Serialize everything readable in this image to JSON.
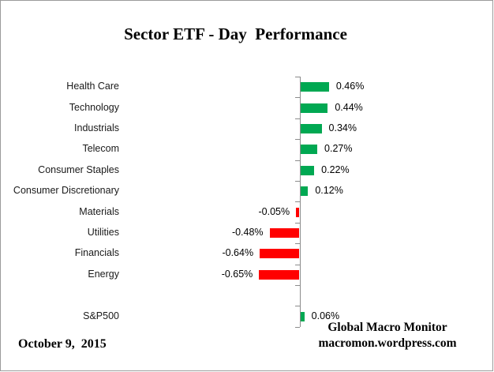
{
  "title": "Sector ETF - Day  Performance",
  "footer": {
    "date": "October 9,  2015",
    "credit_line1": "Global Macro Monitor",
    "credit_line2": "macromon.wordpress.com"
  },
  "colors": {
    "positive": "#00a852",
    "negative": "#ff0000",
    "axis": "#8c8c8c",
    "border": "#9b9b9b",
    "text": "#000000"
  },
  "chart_data": {
    "type": "bar",
    "orientation": "horizontal",
    "title": "Sector ETF - Day  Performance",
    "unit": "%",
    "value_labels_shown": true,
    "grid": false,
    "legend": false,
    "xlim": [
      -0.8,
      0.6
    ],
    "rows": [
      {
        "category": "Health Care",
        "value": 0.46,
        "label": "0.46%"
      },
      {
        "category": "Technology",
        "value": 0.44,
        "label": "0.44%"
      },
      {
        "category": "Industrials",
        "value": 0.34,
        "label": "0.34%"
      },
      {
        "category": "Telecom",
        "value": 0.27,
        "label": "0.27%"
      },
      {
        "category": "Consumer Staples",
        "value": 0.22,
        "label": "0.22%"
      },
      {
        "category": "Consumer Discretionary",
        "value": 0.12,
        "label": "0.12%"
      },
      {
        "category": "Materials",
        "value": -0.05,
        "label": "-0.05%"
      },
      {
        "category": "Utilities",
        "value": -0.48,
        "label": "-0.48%"
      },
      {
        "category": "Financials",
        "value": -0.64,
        "label": "-0.64%"
      },
      {
        "category": "Energy",
        "value": -0.65,
        "label": "-0.65%"
      },
      {
        "category": "",
        "value": null,
        "label": ""
      },
      {
        "category": "S&P500",
        "value": 0.06,
        "label": "0.06%"
      }
    ]
  }
}
